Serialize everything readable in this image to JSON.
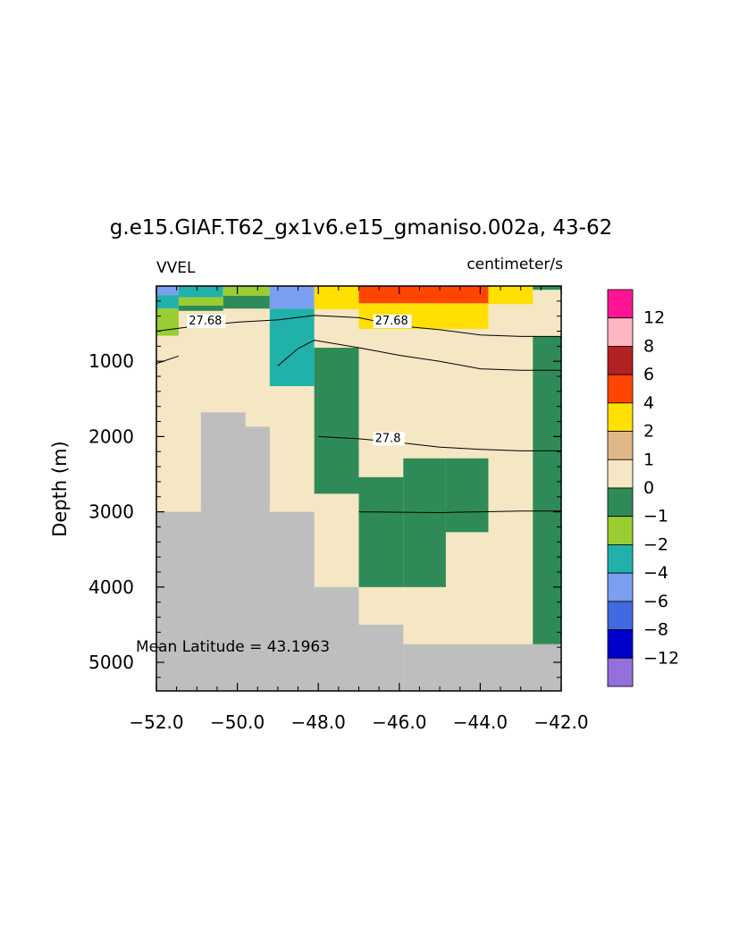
{
  "title": "g.e15.GIAF.T62_gx1v6.e15_gmaniso.002a, 43-62",
  "variable_label": "VVEL",
  "units_label": "centimeter/s",
  "annotation": "Mean Latitude = 43.1963",
  "chart_data": {
    "type": "heatmap",
    "title": "g.e15.GIAF.T62_gx1v6.e15_gmaniso.002a, 43-62",
    "xlabel": "",
    "ylabel": "Depth (m)",
    "xlim": [
      -52.0,
      -42.0
    ],
    "ylim": [
      5380,
      0
    ],
    "x_ticks": [
      -52.0,
      -50.0,
      -48.0,
      -46.0,
      -44.0,
      -42.0
    ],
    "x_tick_labels": [
      "−52.0",
      "−50.0",
      "−48.0",
      "−46.0",
      "−44.0",
      "−42.0"
    ],
    "y_ticks": [
      1000,
      2000,
      3000,
      4000,
      5000
    ],
    "y_tick_labels": [
      "1000",
      "2000",
      "3000",
      "4000",
      "5000"
    ],
    "land_color": "#bebebe",
    "background_color": "#f5e6c4",
    "colorbar": {
      "labels": [
        "12",
        "8",
        "6",
        "4",
        "2",
        "1",
        "0",
        "−1",
        "−2",
        "−4",
        "−6",
        "−8",
        "−12"
      ],
      "colors": [
        "#ff1493",
        "#ffb6c1",
        "#b22222",
        "#ff4500",
        "#ffe000",
        "#deb887",
        "#f5e6c4",
        "#2e8b57",
        "#9acd32",
        "#20b2aa",
        "#7b9ff0",
        "#4169e1",
        "#0000cd",
        "#9370db"
      ]
    },
    "land_mask": [
      {
        "lon": [
          -51.45,
          -50.9
        ],
        "depth_top": 3000
      },
      {
        "lon": [
          -50.9,
          -49.8
        ],
        "depth_top": 1680
      },
      {
        "lon": [
          -49.8,
          -49.2
        ],
        "depth_top": 1870
      },
      {
        "lon": [
          -49.2,
          -48.1
        ],
        "depth_top": 3000
      },
      {
        "lon": [
          -48.1,
          -47.0
        ],
        "depth_top": 4000
      },
      {
        "lon": [
          -47.0,
          -45.9
        ],
        "depth_top": 4500
      },
      {
        "lon": [
          -45.9,
          -42.7
        ],
        "depth_top": 4760
      },
      {
        "lon": [
          -42.7,
          -42.0
        ],
        "depth_top": 4760
      }
    ],
    "cells": [
      {
        "lon": [
          -52.0,
          -51.45
        ],
        "depth": [
          0,
          120
        ],
        "value": -6
      },
      {
        "lon": [
          -52.0,
          -51.45
        ],
        "depth": [
          120,
          300
        ],
        "value": -4
      },
      {
        "lon": [
          -52.0,
          -51.45
        ],
        "depth": [
          300,
          660
        ],
        "value": -2
      },
      {
        "lon": [
          -51.45,
          -50.35
        ],
        "depth": [
          0,
          150
        ],
        "value": -4
      },
      {
        "lon": [
          -51.45,
          -50.35
        ],
        "depth": [
          150,
          260
        ],
        "value": -2
      },
      {
        "lon": [
          -51.45,
          -50.35
        ],
        "depth": [
          260,
          330
        ],
        "value": -1
      },
      {
        "lon": [
          -50.35,
          -49.2
        ],
        "depth": [
          0,
          130
        ],
        "value": -2
      },
      {
        "lon": [
          -50.35,
          -49.2
        ],
        "depth": [
          130,
          300
        ],
        "value": -1
      },
      {
        "lon": [
          -49.2,
          -48.1
        ],
        "depth": [
          0,
          300
        ],
        "value": -6
      },
      {
        "lon": [
          -49.2,
          -48.1
        ],
        "depth": [
          300,
          1330
        ],
        "value": -4
      },
      {
        "lon": [
          -48.1,
          -47.0
        ],
        "depth": [
          0,
          120
        ],
        "value": 2
      },
      {
        "lon": [
          -48.1,
          -47.0
        ],
        "depth": [
          120,
          310
        ],
        "value": 2
      },
      {
        "lon": [
          -47.0,
          -43.8
        ],
        "depth": [
          0,
          230
        ],
        "value": 4
      },
      {
        "lon": [
          -47.0,
          -43.8
        ],
        "depth": [
          230,
          570
        ],
        "value": 2
      },
      {
        "lon": [
          -43.8,
          -42.7
        ],
        "depth": [
          0,
          240
        ],
        "value": 2
      },
      {
        "lon": [
          -42.7,
          -42.0
        ],
        "depth": [
          0,
          50
        ],
        "value": -1
      },
      {
        "lon": [
          -48.1,
          -47.0
        ],
        "depth": [
          820,
          2760
        ],
        "value": -1
      },
      {
        "lon": [
          -47.0,
          -45.9
        ],
        "depth": [
          2540,
          4000
        ],
        "value": -1
      },
      {
        "lon": [
          -45.9,
          -44.85
        ],
        "depth": [
          2290,
          4000
        ],
        "value": -1
      },
      {
        "lon": [
          -44.85,
          -43.8
        ],
        "depth": [
          2290,
          3270
        ],
        "value": -1
      },
      {
        "lon": [
          -42.7,
          -42.0
        ],
        "depth": [
          670,
          4760
        ],
        "value": -1
      }
    ],
    "contours": [
      {
        "label": "27.68",
        "points": [
          [
            -52.0,
            600
          ],
          [
            -51.0,
            530
          ],
          [
            -50.0,
            480
          ],
          [
            -49.0,
            450
          ],
          [
            -48.1,
            390
          ],
          [
            -47.0,
            420
          ],
          [
            -46.0,
            530
          ],
          [
            -45.0,
            580
          ],
          [
            -44.0,
            650
          ],
          [
            -43.0,
            670
          ],
          [
            -42.0,
            670
          ]
        ]
      },
      {
        "label": "",
        "points": [
          [
            -52.0,
            1030
          ],
          [
            -51.45,
            930
          ]
        ]
      },
      {
        "label": "",
        "points": [
          [
            -49.0,
            1060
          ],
          [
            -48.5,
            830
          ],
          [
            -48.1,
            720
          ],
          [
            -47.0,
            820
          ],
          [
            -46.0,
            920
          ],
          [
            -45.0,
            1000
          ],
          [
            -44.0,
            1100
          ],
          [
            -43.0,
            1120
          ],
          [
            -42.0,
            1120
          ]
        ]
      },
      {
        "label": "27.8",
        "points": [
          [
            -48.0,
            2000
          ],
          [
            -47.0,
            2030
          ],
          [
            -46.0,
            2080
          ],
          [
            -45.0,
            2140
          ],
          [
            -44.0,
            2170
          ],
          [
            -43.0,
            2190
          ],
          [
            -42.0,
            2190
          ]
        ]
      },
      {
        "label": "",
        "points": [
          [
            -47.0,
            3000
          ],
          [
            -45.0,
            3010
          ],
          [
            -44.0,
            3000
          ],
          [
            -43.0,
            2990
          ],
          [
            -42.0,
            2990
          ]
        ]
      }
    ],
    "contour_labels": [
      {
        "text": "27.68",
        "lon": -51.2,
        "depth": 510
      },
      {
        "text": "27.68",
        "lon": -46.6,
        "depth": 510
      },
      {
        "text": "27.8",
        "lon": -46.6,
        "depth": 2070
      }
    ]
  }
}
